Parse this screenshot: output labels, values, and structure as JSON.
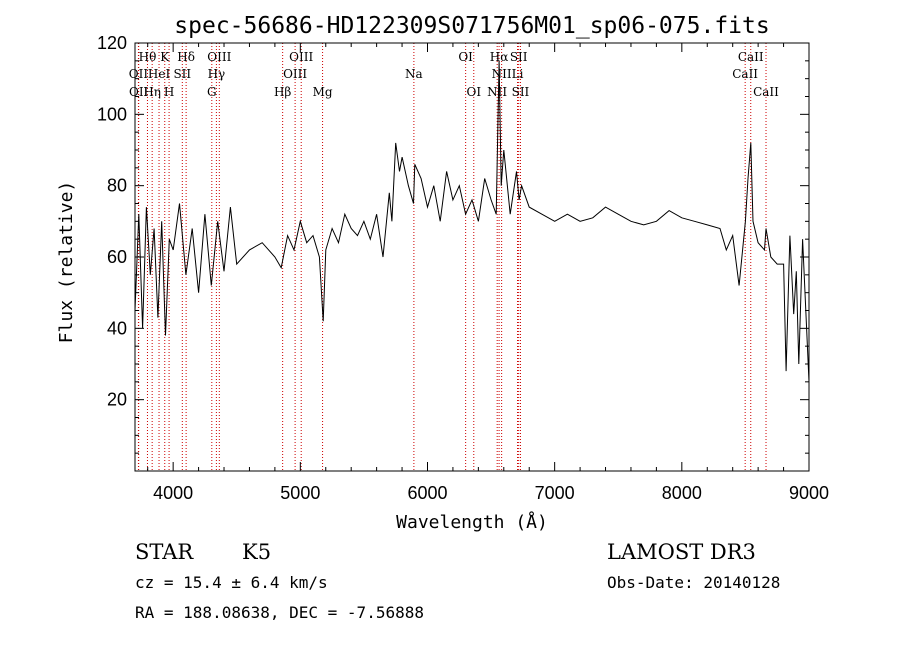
{
  "chart_data": {
    "type": "line",
    "title": "spec-56686-HD122309S071756M01_sp06-075.fits",
    "xlabel": "Wavelength (Å)",
    "ylabel": "Flux (relative)",
    "xlim": [
      3700,
      9000
    ],
    "ylim": [
      0,
      120
    ],
    "xticks": [
      4000,
      5000,
      6000,
      7000,
      8000,
      9000
    ],
    "yticks": [
      20,
      40,
      60,
      80,
      100,
      120
    ],
    "xtick_labels": [
      "4000",
      "5000",
      "6000",
      "7000",
      "8000",
      "9000"
    ],
    "ytick_labels": [
      "20",
      "40",
      "60",
      "80",
      "100",
      "120"
    ],
    "series": [
      {
        "name": "flux",
        "x": [
          3700,
          3730,
          3760,
          3790,
          3820,
          3850,
          3880,
          3910,
          3940,
          3970,
          4000,
          4050,
          4100,
          4150,
          4200,
          4250,
          4300,
          4350,
          4400,
          4450,
          4500,
          4600,
          4700,
          4800,
          4850,
          4900,
          4950,
          5000,
          5050,
          5100,
          5150,
          5180,
          5200,
          5250,
          5300,
          5350,
          5400,
          5450,
          5500,
          5550,
          5600,
          5650,
          5700,
          5720,
          5750,
          5780,
          5800,
          5850,
          5890,
          5900,
          5950,
          6000,
          6050,
          6100,
          6150,
          6200,
          6250,
          6300,
          6350,
          6400,
          6450,
          6500,
          6540,
          6563,
          6580,
          6600,
          6650,
          6700,
          6720,
          6740,
          6800,
          6900,
          7000,
          7100,
          7200,
          7300,
          7400,
          7500,
          7600,
          7700,
          7800,
          7900,
          8000,
          8100,
          8200,
          8300,
          8350,
          8400,
          8450,
          8500,
          8520,
          8542,
          8560,
          8600,
          8650,
          8662,
          8700,
          8750,
          8800,
          8820,
          8850,
          8880,
          8900,
          8920,
          8950,
          9000
        ],
        "y": [
          45,
          72,
          40,
          74,
          55,
          68,
          43,
          70,
          38,
          65,
          62,
          75,
          55,
          68,
          50,
          72,
          52,
          70,
          56,
          74,
          58,
          62,
          64,
          60,
          57,
          66,
          62,
          70,
          64,
          66,
          60,
          42,
          62,
          68,
          64,
          72,
          68,
          66,
          70,
          65,
          72,
          60,
          78,
          70,
          92,
          84,
          88,
          80,
          75,
          86,
          82,
          74,
          80,
          70,
          84,
          76,
          80,
          72,
          76,
          70,
          82,
          76,
          72,
          115,
          80,
          90,
          72,
          84,
          76,
          80,
          74,
          72,
          70,
          72,
          70,
          71,
          74,
          72,
          70,
          69,
          70,
          73,
          71,
          70,
          69,
          68,
          62,
          66,
          52,
          70,
          82,
          92,
          70,
          64,
          62,
          68,
          60,
          58,
          58,
          28,
          66,
          44,
          56,
          30,
          65,
          25
        ]
      }
    ],
    "line_markers": [
      {
        "label": "Hθ",
        "wave": 3798,
        "row": 0
      },
      {
        "label": "K",
        "wave": 3934,
        "row": 0
      },
      {
        "label": "Hδ",
        "wave": 4102,
        "row": 0
      },
      {
        "label": "OIII",
        "wave": 4363,
        "row": 0
      },
      {
        "label": "OIII",
        "wave": 5007,
        "row": 0
      },
      {
        "label": "OI",
        "wave": 6300,
        "row": 0
      },
      {
        "label": "Hα",
        "wave": 6563,
        "row": 0
      },
      {
        "label": "SII",
        "wave": 6717,
        "row": 0
      },
      {
        "label": "CaII",
        "wave": 8542,
        "row": 0
      },
      {
        "label": "OII",
        "wave": 3727,
        "row": 1
      },
      {
        "label": "HeI",
        "wave": 3889,
        "row": 1
      },
      {
        "label": "SII",
        "wave": 4072,
        "row": 1
      },
      {
        "label": "Hγ",
        "wave": 4340,
        "row": 1
      },
      {
        "label": "OIII",
        "wave": 4959,
        "row": 1
      },
      {
        "label": "Na",
        "wave": 5893,
        "row": 1
      },
      {
        "label": "NII",
        "wave": 6583,
        "row": 1
      },
      {
        "label": "Li",
        "wave": 6708,
        "row": 1
      },
      {
        "label": "CaII",
        "wave": 8498,
        "row": 1
      },
      {
        "label": "OII",
        "wave": 3729,
        "row": 2
      },
      {
        "label": "Hη",
        "wave": 3835,
        "row": 2
      },
      {
        "label": "H",
        "wave": 3968,
        "row": 2
      },
      {
        "label": "G",
        "wave": 4304,
        "row": 2
      },
      {
        "label": "Hβ",
        "wave": 4861,
        "row": 2
      },
      {
        "label": "Mg",
        "wave": 5175,
        "row": 2
      },
      {
        "label": "OI",
        "wave": 6364,
        "row": 2
      },
      {
        "label": "NII",
        "wave": 6548,
        "row": 2
      },
      {
        "label": "SII",
        "wave": 6731,
        "row": 2
      },
      {
        "label": "CaII",
        "wave": 8662,
        "row": 2
      }
    ],
    "colors": {
      "axes": "#000000",
      "line": "#000000",
      "marker": "#cc0000"
    }
  },
  "info": {
    "class_label": "STAR",
    "subclass": "K5",
    "survey": "LAMOST DR3",
    "cz": "cz = 15.4 ± 6.4 km/s",
    "obs_date": "Obs-Date: 20140128",
    "coords": "RA = 188.08638, DEC =  -7.56888"
  }
}
